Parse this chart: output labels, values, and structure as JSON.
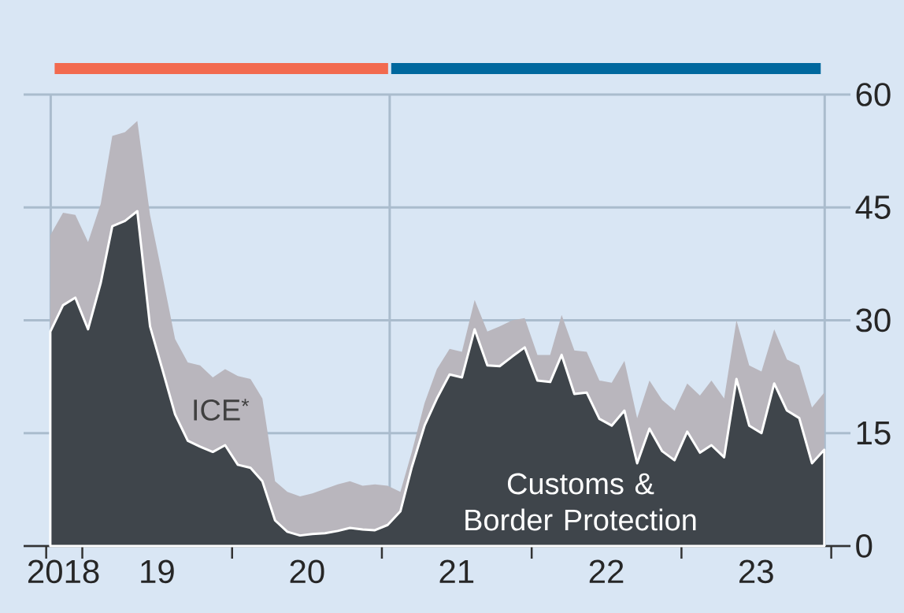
{
  "chart_data": {
    "type": "area",
    "stacked": true,
    "x": [
      "2018-10-15",
      "2018-11-15",
      "2018-12-15",
      "2019-01-15",
      "2019-02-15",
      "2019-03-15",
      "2019-04-15",
      "2019-05-15",
      "2019-06-15",
      "2019-07-15",
      "2019-08-15",
      "2019-09-15",
      "2019-10-15",
      "2019-11-15",
      "2019-12-15",
      "2020-01-15",
      "2020-02-15",
      "2020-03-15",
      "2020-04-15",
      "2020-05-15",
      "2020-06-15",
      "2020-07-15",
      "2020-08-15",
      "2020-09-15",
      "2020-10-15",
      "2020-11-15",
      "2020-12-15",
      "2021-01-15",
      "2021-02-15",
      "2021-03-15",
      "2021-04-15",
      "2021-05-15",
      "2021-06-15",
      "2021-07-15",
      "2021-08-15",
      "2021-09-15",
      "2021-10-15",
      "2021-11-15",
      "2021-12-15",
      "2022-01-15",
      "2022-02-15",
      "2022-03-15",
      "2022-04-15",
      "2022-05-15",
      "2022-06-15",
      "2022-07-15",
      "2022-08-15",
      "2022-09-15",
      "2022-10-15",
      "2022-11-15",
      "2022-12-15",
      "2023-01-15",
      "2023-02-15",
      "2023-03-15",
      "2023-04-15",
      "2023-05-15",
      "2023-06-15",
      "2023-07-15",
      "2023-08-15",
      "2023-09-15",
      "2023-10-15",
      "2023-11-15",
      "2023-12-15"
    ],
    "series": [
      {
        "name": "Customs & Border Protection",
        "color": "#3f454b",
        "values": [
          28.5,
          32,
          33,
          28.8,
          35,
          42.5,
          43.2,
          44.5,
          29.2,
          23.5,
          17.5,
          14,
          13.2,
          12.5,
          13.4,
          10.8,
          10.4,
          8.6,
          3.4,
          1.9,
          1.4,
          1.6,
          1.7,
          2,
          2.4,
          2.2,
          2.1,
          2.8,
          4.6,
          10.5,
          16,
          19.6,
          22.8,
          22.4,
          28.8,
          24,
          23.9,
          25.2,
          26.4,
          22,
          21.8,
          25.4,
          20.2,
          20.4,
          16.9,
          16,
          18,
          11,
          15.6,
          12.6,
          11.4,
          15.2,
          12.4,
          13.4,
          11.8,
          22.2,
          16,
          15,
          21.6,
          18,
          17,
          11,
          12.8
        ]
      },
      {
        "name": "ICE$^{*}$",
        "color": "#b9b6bd",
        "values": [
          12.8,
          12.3,
          11,
          11.6,
          10.5,
          12,
          11.8,
          12,
          14.8,
          12.5,
          10,
          10.4,
          10.8,
          9.9,
          10.1,
          11.8,
          11.8,
          11,
          5.2,
          5.3,
          5.2,
          5.4,
          5.9,
          6.2,
          6.2,
          5.8,
          6.1,
          5.2,
          2.6,
          2,
          3,
          3.9,
          3.4,
          3.4,
          3.9,
          4.5,
          5.3,
          4.8,
          3.9,
          3.4,
          3.6,
          5.3,
          5.8,
          5.4,
          5.1,
          5.7,
          6.6,
          6,
          6.4,
          6.8,
          6.6,
          6.4,
          7.6,
          8.6,
          7.8,
          7.8,
          8,
          8.2,
          7.2,
          6.8,
          7,
          7.4,
          7.6
        ]
      }
    ],
    "xlim": [
      "2018-08-11",
      "2024-02-17"
    ],
    "xticks": [
      {
        "value": "2018-10-05",
        "label": null
      },
      {
        "value": "2018-11-16",
        "label": "2018"
      },
      {
        "value": "2019-01-01",
        "label": null
      },
      {
        "value": "2019-07-02",
        "label": "19"
      },
      {
        "value": "2020-01-01",
        "label": null
      },
      {
        "value": "2020-07-02",
        "label": "20"
      },
      {
        "value": "2021-01-01",
        "label": null
      },
      {
        "value": "2021-07-02",
        "label": "21"
      },
      {
        "value": "2022-01-01",
        "label": null
      },
      {
        "value": "2022-07-02",
        "label": "22"
      },
      {
        "value": "2023-01-01",
        "label": null
      },
      {
        "value": "2023-07-02",
        "label": "23"
      },
      {
        "value": "2024-01-01",
        "label": null
      }
    ],
    "ylim": [
      0,
      60
    ],
    "yticks": [
      0,
      15,
      30,
      45,
      60
    ],
    "grid": "y",
    "ref_lines": [
      {
        "axis": "x",
        "value": "2018-10-16",
        "color": "#aabccd"
      },
      {
        "axis": "x",
        "value": "2021-01-20",
        "color": "#aabccd"
      },
      {
        "axis": "x",
        "value": "2023-12-16",
        "color": "#aabccd"
      }
    ]
  }
}
